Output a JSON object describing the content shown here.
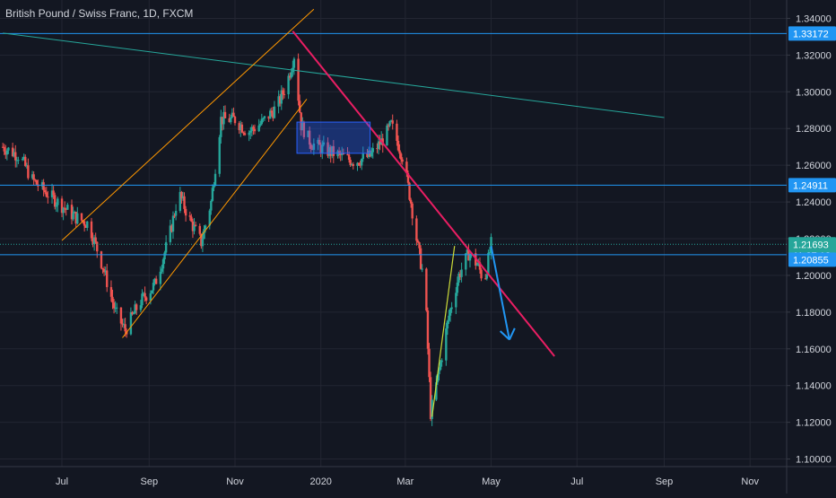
{
  "header": {
    "title": "British Pound / Swiss Franc, 1D, FXCM"
  },
  "colors": {
    "background": "#131722",
    "grid": "#232632",
    "axis_text": "#d1d4dc",
    "up": "#26a69a",
    "down": "#ef5350",
    "hline": "#2196f3",
    "channel": "#ff9800",
    "downtrend": "#e91e63",
    "long_trend": "#26a69a",
    "box_fill": "#2962ff",
    "arrow": "#2196f3",
    "up_line": "#cddc39",
    "price_tag": "#2196f3",
    "tag_text": "#ffffff"
  },
  "chart_data": {
    "type": "candlestick",
    "title": "British Pound / Swiss Franc, 1D, FXCM",
    "xlabel": "",
    "ylabel": "",
    "ylim": [
      1.09,
      1.35
    ],
    "grid": true,
    "x_ticks": [
      "Jul",
      "Sep",
      "Nov",
      "2020",
      "Mar",
      "May",
      "Jul",
      "Sep",
      "Nov"
    ],
    "y_ticks": [
      "1.34000",
      "1.32000",
      "1.30000",
      "1.28000",
      "1.26000",
      "1.24000",
      "1.22000",
      "1.20000",
      "1.18000",
      "1.16000",
      "1.14000",
      "1.12000",
      "1.10000"
    ],
    "price_tags": [
      {
        "label": "1.33172",
        "value": 1.33172
      },
      {
        "label": "1.24911",
        "value": 1.24911
      },
      {
        "label": "1.21693",
        "value": 1.21693
      },
      {
        "label": "11:37:12",
        "value": 1.2125,
        "role": "countdown"
      },
      {
        "label": "1.20855",
        "value": 1.20855
      }
    ],
    "horizontal_lines": [
      1.33172,
      1.24911,
      1.21125
    ],
    "dotted_line": 1.21693,
    "price_path": [
      [
        "2019-05-20",
        1.27
      ],
      [
        "2019-06-01",
        1.265
      ],
      [
        "2019-06-10",
        1.252
      ],
      [
        "2019-06-20",
        1.245
      ],
      [
        "2019-07-01",
        1.238
      ],
      [
        "2019-07-10",
        1.232
      ],
      [
        "2019-07-20",
        1.228
      ],
      [
        "2019-07-30",
        1.205
      ],
      [
        "2019-08-08",
        1.18
      ],
      [
        "2019-08-15",
        1.17
      ],
      [
        "2019-08-25",
        1.185
      ],
      [
        "2019-09-05",
        1.195
      ],
      [
        "2019-09-15",
        1.22
      ],
      [
        "2019-09-22",
        1.245
      ],
      [
        "2019-09-30",
        1.23
      ],
      [
        "2019-10-08",
        1.218
      ],
      [
        "2019-10-15",
        1.24
      ],
      [
        "2019-10-22",
        1.285
      ],
      [
        "2019-11-01",
        1.285
      ],
      [
        "2019-11-10",
        1.278
      ],
      [
        "2019-11-20",
        1.283
      ],
      [
        "2019-12-01",
        1.292
      ],
      [
        "2019-12-08",
        1.305
      ],
      [
        "2019-12-13",
        1.32
      ],
      [
        "2019-12-18",
        1.282
      ],
      [
        "2019-12-25",
        1.272
      ],
      [
        "2020-01-05",
        1.268
      ],
      [
        "2020-01-15",
        1.265
      ],
      [
        "2020-01-25",
        1.262
      ],
      [
        "2020-02-05",
        1.265
      ],
      [
        "2020-02-15",
        1.275
      ],
      [
        "2020-02-20",
        1.282
      ],
      [
        "2020-02-28",
        1.265
      ],
      [
        "2020-03-05",
        1.24
      ],
      [
        "2020-03-10",
        1.215
      ],
      [
        "2020-03-15",
        1.195
      ],
      [
        "2020-03-19",
        1.125
      ],
      [
        "2020-03-25",
        1.148
      ],
      [
        "2020-04-01",
        1.178
      ],
      [
        "2020-04-08",
        1.2
      ],
      [
        "2020-04-15",
        1.212
      ],
      [
        "2020-04-22",
        1.205
      ],
      [
        "2020-04-26",
        1.196
      ],
      [
        "2020-05-01",
        1.217
      ]
    ],
    "drawings": {
      "ascending_channel": {
        "lower": [
          [
            "2019-08-13",
            1.166
          ],
          [
            "2019-12-22",
            1.296
          ]
        ],
        "upper": [
          [
            "2019-07-01",
            1.219
          ],
          [
            "2019-12-27",
            1.345
          ]
        ]
      },
      "descending_trendline": [
        [
          "2019-12-12",
          1.333
        ],
        [
          "2020-06-15",
          1.156
        ]
      ],
      "long_trendline": [
        [
          "2019-05-20",
          1.332
        ],
        [
          "2020-09-01",
          1.286
        ]
      ],
      "consolidation_box": {
        "x": [
          "2019-12-15",
          "2020-02-05"
        ],
        "y": [
          1.2665,
          1.2835
        ]
      },
      "rising_support": [
        [
          "2020-03-20",
          1.123
        ],
        [
          "2020-04-05",
          1.216
        ]
      ],
      "projection_arrow": [
        [
          "2020-05-01",
          1.216
        ],
        [
          "2020-05-14",
          1.165
        ]
      ]
    }
  }
}
